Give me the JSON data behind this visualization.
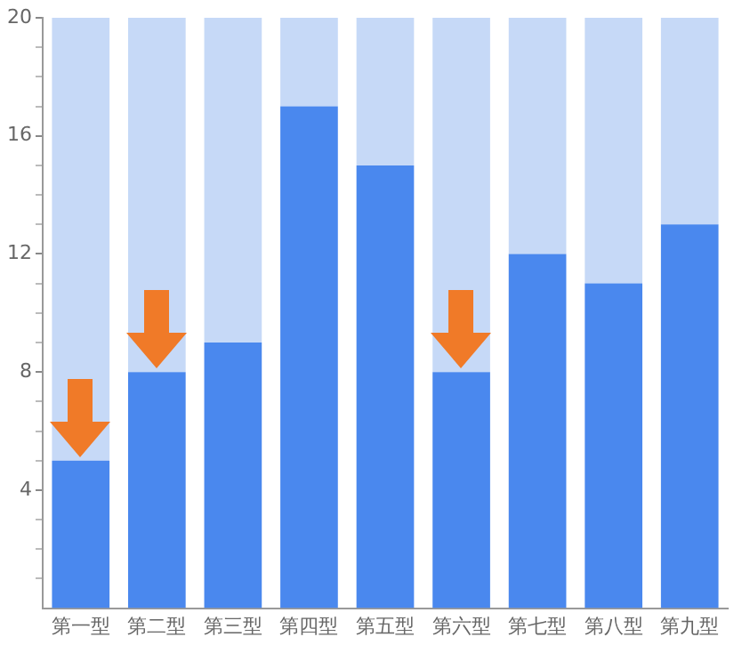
{
  "chart_data": {
    "type": "bar",
    "stacked": true,
    "categories": [
      "第一型",
      "第二型",
      "第三型",
      "第四型",
      "第五型",
      "第六型",
      "第七型",
      "第八型",
      "第九型"
    ],
    "series": [
      {
        "color": "#4a88ee",
        "values": [
          5,
          8,
          9,
          17,
          15,
          8,
          12,
          11,
          13
        ]
      },
      {
        "color": "#c6d9f7",
        "values": [
          15,
          12,
          11,
          3,
          5,
          12,
          8,
          9,
          7
        ]
      }
    ],
    "ylim": [
      0,
      20
    ],
    "yticks": [
      {
        "value": 1,
        "label": null
      },
      {
        "value": 2,
        "label": null
      },
      {
        "value": 3,
        "label": null
      },
      4,
      {
        "value": 5,
        "label": null
      },
      {
        "value": 6,
        "label": null
      },
      {
        "value": 7,
        "label": null
      },
      8,
      {
        "value": 9,
        "label": null
      },
      {
        "value": 10,
        "label": null
      },
      {
        "value": 11,
        "label": null
      },
      12,
      {
        "value": 13,
        "label": null
      },
      {
        "value": 14,
        "label": null
      },
      {
        "value": 15,
        "label": null
      },
      16,
      {
        "value": 17,
        "label": null
      },
      {
        "value": 18,
        "label": null
      },
      {
        "value": 19,
        "label": null
      },
      20
    ],
    "grid": false,
    "legend": false
  }
}
